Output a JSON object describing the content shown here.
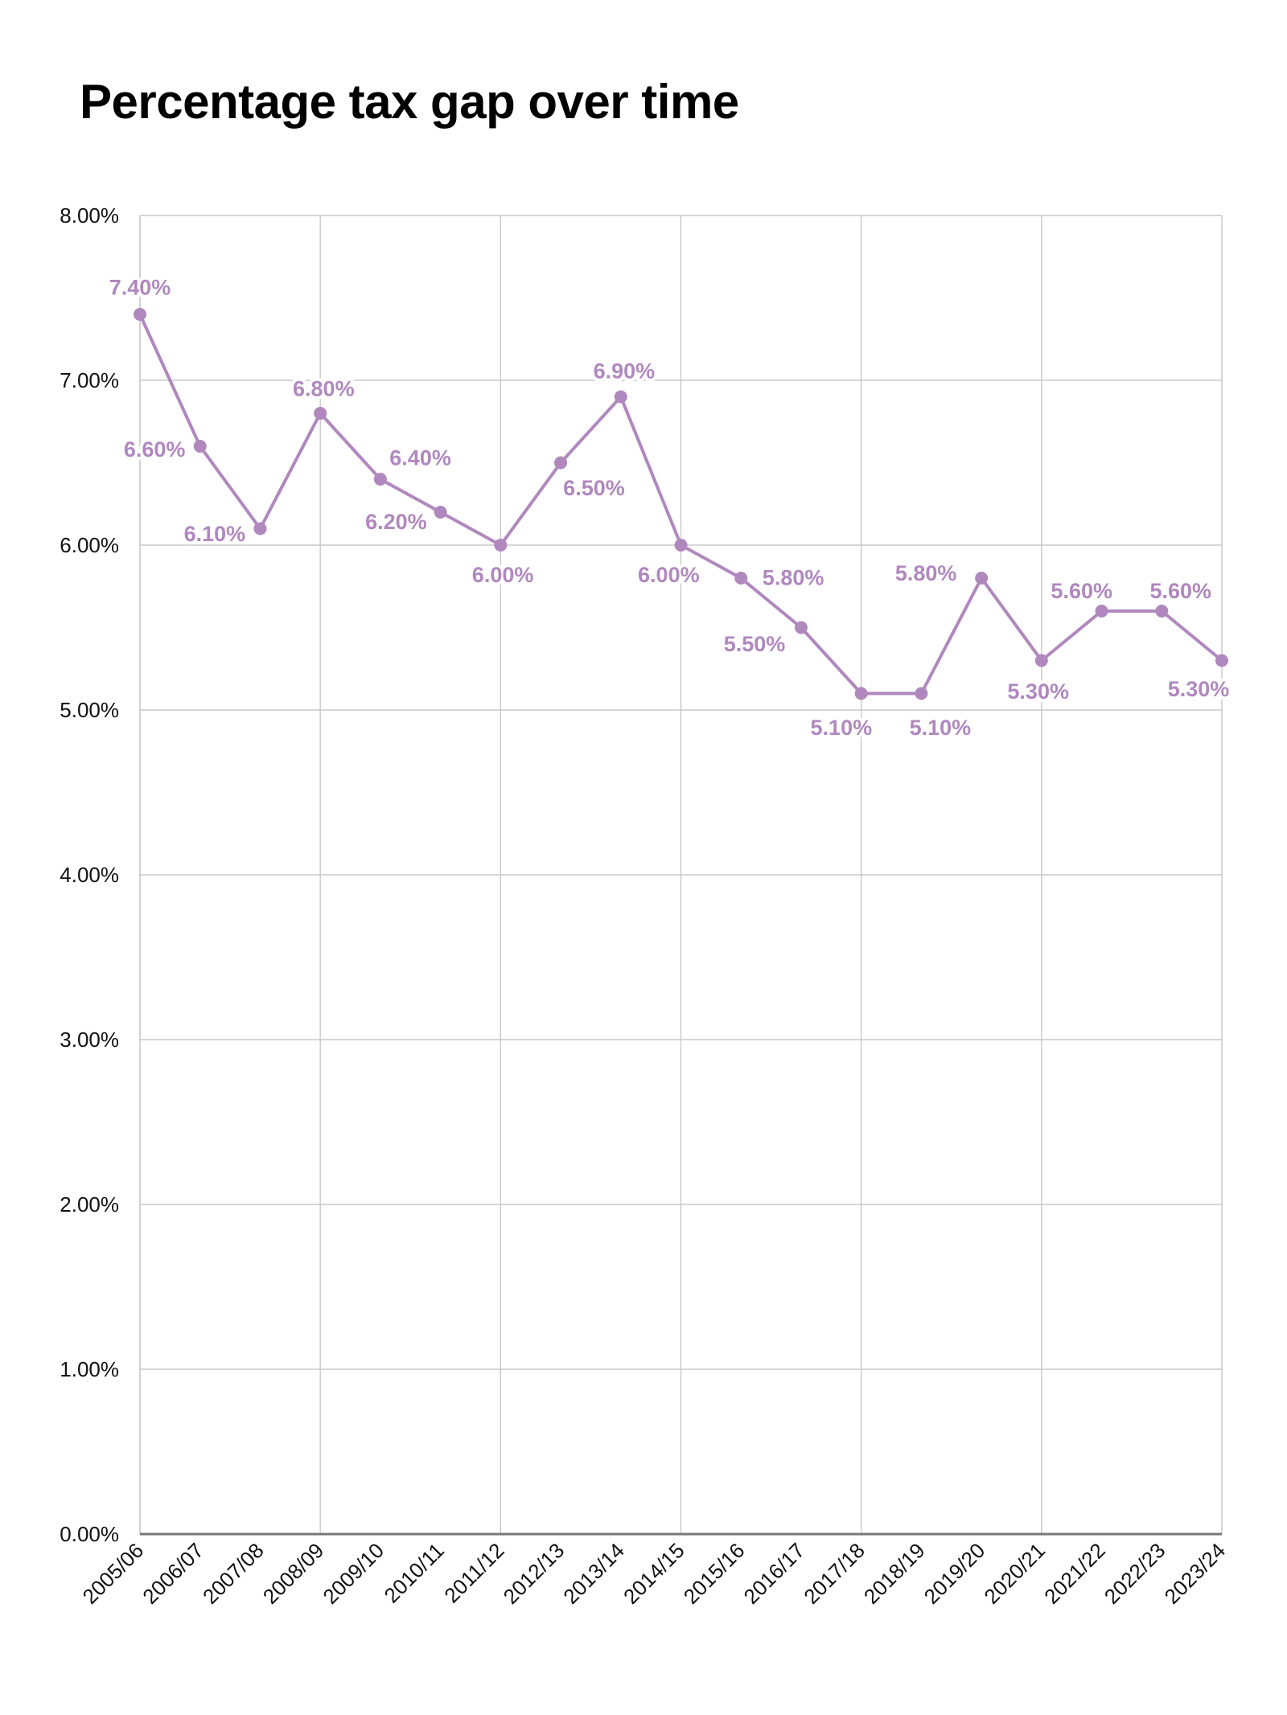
{
  "chart_data": {
    "type": "line",
    "title": "Percentage tax gap over time",
    "xlabel": "",
    "ylabel": "",
    "categories": [
      "2005/06",
      "2006/07",
      "2007/08",
      "2008/09",
      "2009/10",
      "2010/11",
      "2011/12",
      "2012/13",
      "2013/14",
      "2014/15",
      "2015/16",
      "2016/17",
      "2017/18",
      "2018/19",
      "2019/20",
      "2020/21",
      "2021/22",
      "2022/23",
      "2023/24"
    ],
    "series": [
      {
        "values": [
          7.4,
          6.6,
          6.1,
          6.8,
          6.4,
          6.2,
          6.0,
          6.5,
          6.9,
          6.0,
          5.8,
          5.5,
          5.1,
          5.1,
          5.8,
          5.3,
          5.6,
          5.6,
          5.3
        ],
        "data_labels": [
          "7.40%",
          "6.60%",
          "6.10%",
          "6.80%",
          "6.40%",
          "6.20%",
          "6.00%",
          "6.50%",
          "6.90%",
          "6.00%",
          "5.80%",
          "5.50%",
          "5.10%",
          "5.10%",
          "5.80%",
          "5.30%",
          "5.60%",
          "5.60%",
          "5.30%"
        ],
        "color": "#b088be"
      }
    ],
    "ylim": [
      0,
      8
    ],
    "yticks": [
      "0.00%",
      "1.00%",
      "2.00%",
      "3.00%",
      "4.00%",
      "5.00%",
      "6.00%",
      "7.00%",
      "8.00%"
    ],
    "grid": true,
    "legend": "none"
  }
}
